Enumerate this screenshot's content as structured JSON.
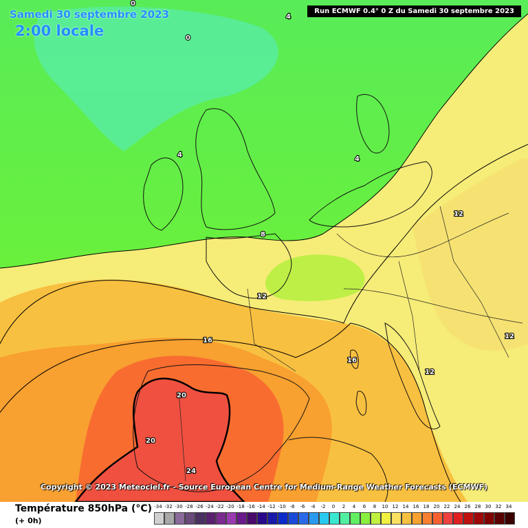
{
  "header": {
    "date": "Samedi 30 septembre 2023",
    "time": "2:00 locale",
    "run": "Run ECMWF 0.4° 0 Z du Samedi 30 septembre 2023"
  },
  "map": {
    "title": "Température 850hPa (°C)",
    "copyright": "Copyright © 2023 Meteociel.fr - Source European Centre for Medium-Range Weather Forecasts (ECMWF)",
    "contour_labels": [
      "0",
      "4",
      "0",
      "4",
      "4",
      "8",
      "12",
      "12",
      "12",
      "16",
      "16",
      "12",
      "20",
      "20",
      "24"
    ]
  },
  "legend": {
    "title": "Température 850hPa (°C)",
    "subtitle": "(+ 0h)",
    "ticks": [
      "-34",
      "-32",
      "-30",
      "-28",
      "-26",
      "-24",
      "-22",
      "-20",
      "-18",
      "-16",
      "-14",
      "-12",
      "-10",
      "-8",
      "-6",
      "-4",
      "-2",
      "0",
      "2",
      "4",
      "6",
      "8",
      "10",
      "12",
      "14",
      "16",
      "18",
      "20",
      "22",
      "24",
      "26",
      "28",
      "30",
      "32",
      "34"
    ],
    "colors": [
      "#d0d0d0",
      "#a8a8a8",
      "#8a6a9a",
      "#6a4a7a",
      "#4a3060",
      "#5a2070",
      "#7a2a90",
      "#9a3ab0",
      "#6a1a8a",
      "#4a0a6a",
      "#2a0a8a",
      "#1a1aaa",
      "#0a2aca",
      "#1a4ada",
      "#2a6aea",
      "#2a9af0",
      "#2acaf0",
      "#3ae8d0",
      "#50f0a0",
      "#60f060",
      "#8af040",
      "#c0f040",
      "#f0f040",
      "#f8e060",
      "#f8c040",
      "#f8a030",
      "#f88030",
      "#f86030",
      "#f04040",
      "#e02020",
      "#c01010",
      "#a00808",
      "#800000",
      "#5a0000",
      "#3a0000"
    ]
  }
}
